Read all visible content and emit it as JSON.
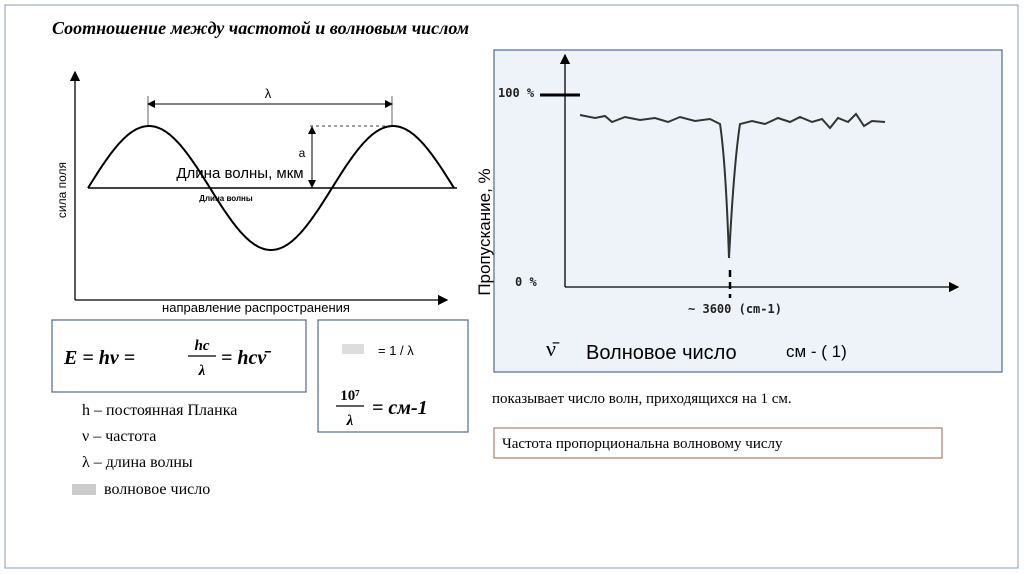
{
  "header": {
    "title": "Соотношение между  частотой и волновым числом"
  },
  "wave_diagram": {
    "wavelength_symbol": "λ",
    "amplitude_symbol": "a",
    "caption": "Длина волны, мкм",
    "small_caption": "Длина волны",
    "y_axis_label": "сила поля",
    "x_axis_label": "направление распространения"
  },
  "formula_box": {
    "lhs": "E = hν =",
    "numerator": "hc",
    "denominator": "λ",
    "rhs": "= hcν̄"
  },
  "definitions": [
    "h – постоянная Планка",
    "ν – частота",
    "λ – длина волны",
    "волновое число"
  ],
  "wavenumber_box": {
    "first_line": "= 1 / λ",
    "numerator": "10⁷",
    "denominator": "λ",
    "rhs": "= см-1"
  },
  "spectrum": {
    "y_axis_label": "Пропускание, %",
    "top_label": "100 %",
    "bottom_label": "0 %",
    "peak_label": "~ 3600 (cm-1)"
  },
  "wavenumber_caption": {
    "symbol": "ν̄",
    "name": "Волновое число",
    "unit": "см - ( 1)"
  },
  "explanation": "показывает число волн, приходящихся на 1 см.",
  "conclusion": "Частота пропорциональна волновому числу"
}
